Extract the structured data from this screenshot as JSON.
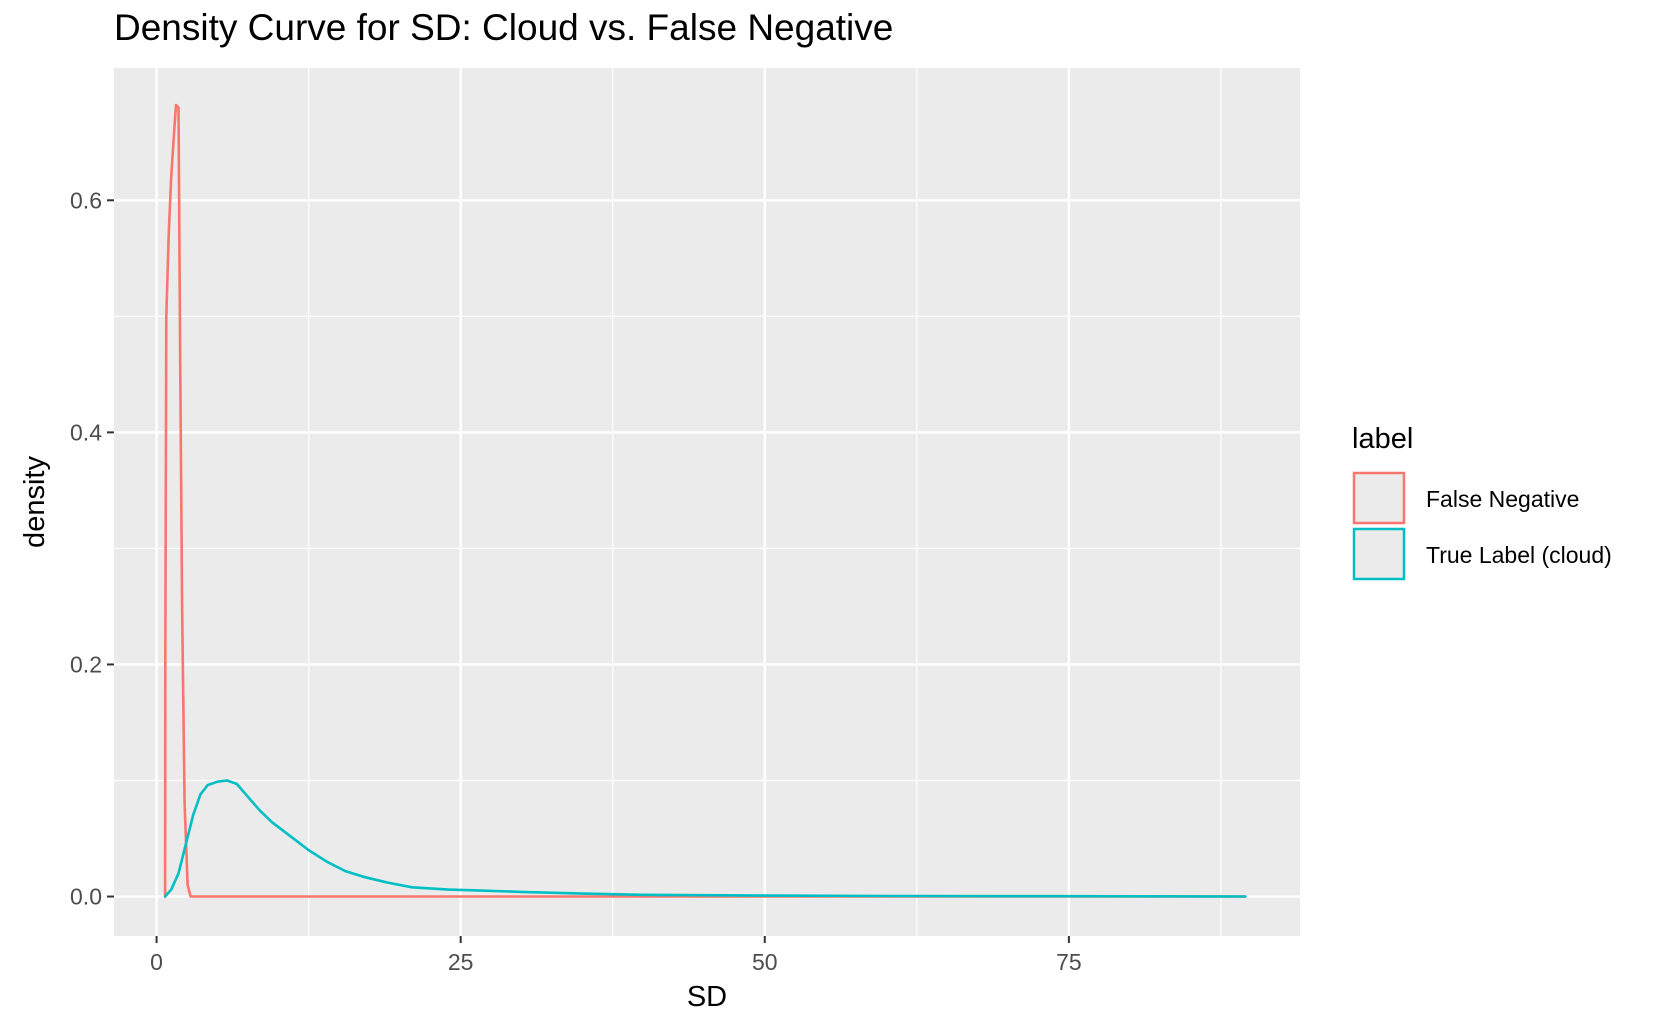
{
  "chart_data": {
    "type": "line",
    "title": "Density Curve for SD: Cloud vs. False Negative",
    "xlabel": "SD",
    "ylabel": "density",
    "xlim": [
      -3.5,
      94
    ],
    "ylim": [
      -0.034,
      0.714
    ],
    "x_ticks": [
      0,
      25,
      50,
      75
    ],
    "y_ticks": [
      0.0,
      0.2,
      0.4,
      0.6
    ],
    "x_tick_labels": [
      "0",
      "25",
      "50",
      "75"
    ],
    "y_tick_labels": [
      "0.0",
      "0.2",
      "0.4",
      "0.6"
    ],
    "grid": true,
    "legend": {
      "title": "label",
      "position": "right"
    },
    "series": [
      {
        "name": "False Negative",
        "color": "#F8766D",
        "points": [
          [
            0.7,
            0.0
          ],
          [
            0.72,
            0.2
          ],
          [
            0.8,
            0.5
          ],
          [
            1.0,
            0.57
          ],
          [
            1.2,
            0.62
          ],
          [
            1.45,
            0.66
          ],
          [
            1.6,
            0.682
          ],
          [
            1.8,
            0.68
          ],
          [
            1.95,
            0.45
          ],
          [
            2.1,
            0.25
          ],
          [
            2.3,
            0.08
          ],
          [
            2.55,
            0.01
          ],
          [
            2.8,
            0.0
          ],
          [
            89.5,
            0.0
          ]
        ]
      },
      {
        "name": "True Label (cloud)",
        "color": "#00BFC4",
        "points": [
          [
            0.7,
            0.0
          ],
          [
            1.2,
            0.006
          ],
          [
            1.8,
            0.02
          ],
          [
            2.4,
            0.045
          ],
          [
            3.0,
            0.07
          ],
          [
            3.6,
            0.088
          ],
          [
            4.2,
            0.096
          ],
          [
            5.0,
            0.099
          ],
          [
            5.8,
            0.1
          ],
          [
            6.6,
            0.097
          ],
          [
            7.5,
            0.086
          ],
          [
            8.5,
            0.074
          ],
          [
            9.5,
            0.064
          ],
          [
            11.0,
            0.052
          ],
          [
            12.5,
            0.04
          ],
          [
            14.0,
            0.03
          ],
          [
            15.5,
            0.022
          ],
          [
            17.0,
            0.017
          ],
          [
            19.0,
            0.012
          ],
          [
            21.0,
            0.008
          ],
          [
            24.0,
            0.006
          ],
          [
            27.0,
            0.005
          ],
          [
            30.0,
            0.004
          ],
          [
            35.0,
            0.0025
          ],
          [
            40.0,
            0.0015
          ],
          [
            50.0,
            0.0008
          ],
          [
            60.0,
            0.0005
          ],
          [
            75.0,
            0.0003
          ],
          [
            89.5,
            0.0
          ]
        ]
      }
    ]
  },
  "colors": {
    "panel_background": "#EBEBEB",
    "grid_line": "#FFFFFF",
    "false_negative": "#F8766D",
    "true_label_cloud": "#00BFC4"
  }
}
